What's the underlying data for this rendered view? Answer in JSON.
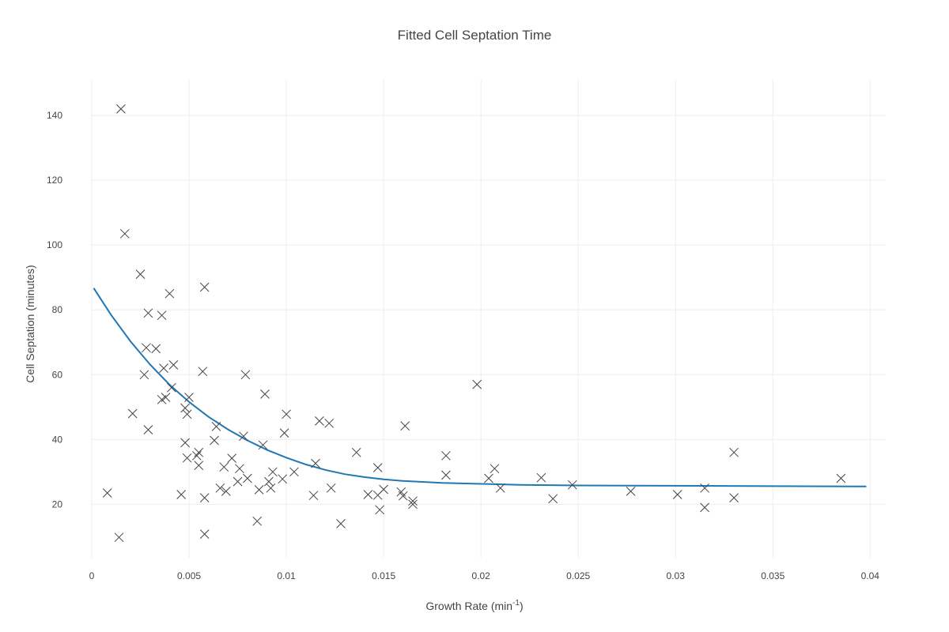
{
  "chart_data": {
    "type": "scatter",
    "title": "Fitted Cell Septation Time",
    "xlabel_main": "Growth Rate (min",
    "xlabel_sup": "-1",
    "xlabel_tail": ")",
    "ylabel": "Cell Septation (minutes)",
    "xlim": [
      0,
      0.0408
    ],
    "ylim": [
      3.5,
      151
    ],
    "xticks": [
      0,
      0.005,
      0.01,
      0.015,
      0.02,
      0.025,
      0.03,
      0.035,
      0.04
    ],
    "xtick_labels": [
      "0",
      "0.005",
      "0.01",
      "0.015",
      "0.02",
      "0.025",
      "0.03",
      "0.035",
      "0.04"
    ],
    "yticks": [
      20,
      40,
      60,
      80,
      100,
      120,
      140
    ],
    "ytick_labels": [
      "20",
      "40",
      "60",
      "80",
      "100",
      "120",
      "140"
    ],
    "grid": true,
    "colors": {
      "marker": "#444444",
      "fit": "#1f77b4",
      "grid": "#eeeeee",
      "text": "#444444"
    },
    "series": [
      {
        "kind": "markers",
        "marker": "x",
        "points": [
          [
            0.0015,
            142
          ],
          [
            0.0017,
            103.5
          ],
          [
            0.0025,
            91
          ],
          [
            0.0029,
            79
          ],
          [
            0.0036,
            78.3
          ],
          [
            0.004,
            85
          ],
          [
            0.0058,
            87
          ],
          [
            0.0028,
            68.3
          ],
          [
            0.0033,
            68
          ],
          [
            0.0027,
            60
          ],
          [
            0.0037,
            62
          ],
          [
            0.0042,
            63
          ],
          [
            0.0041,
            56
          ],
          [
            0.0036,
            52.3
          ],
          [
            0.0038,
            53
          ],
          [
            0.005,
            53
          ],
          [
            0.0048,
            49.7
          ],
          [
            0.0049,
            47.8
          ],
          [
            0.0021,
            48
          ],
          [
            0.0029,
            43
          ],
          [
            0.0048,
            39
          ],
          [
            0.0049,
            34.3
          ],
          [
            0.0054,
            35
          ],
          [
            0.0055,
            36
          ],
          [
            0.0055,
            32
          ],
          [
            0.0046,
            23
          ],
          [
            0.0057,
            61
          ],
          [
            0.0064,
            44
          ],
          [
            0.0063,
            39.7
          ],
          [
            0.0068,
            31.5
          ],
          [
            0.0072,
            34.2
          ],
          [
            0.0066,
            25
          ],
          [
            0.0069,
            24
          ],
          [
            0.0058,
            22
          ],
          [
            0.0058,
            10.8
          ],
          [
            0.0014,
            9.8
          ],
          [
            0.0008,
            23.5
          ],
          [
            0.0079,
            60
          ],
          [
            0.0089,
            54
          ],
          [
            0.0078,
            41
          ],
          [
            0.0088,
            38.3
          ],
          [
            0.0076,
            31
          ],
          [
            0.008,
            28
          ],
          [
            0.0075,
            27
          ],
          [
            0.0086,
            24.5
          ],
          [
            0.0085,
            14.8
          ],
          [
            0.0093,
            30
          ],
          [
            0.0091,
            27
          ],
          [
            0.0092,
            25
          ],
          [
            0.01,
            47.8
          ],
          [
            0.0099,
            42
          ],
          [
            0.0098,
            27.8
          ],
          [
            0.0104,
            30
          ],
          [
            0.0117,
            45.7
          ],
          [
            0.0122,
            45
          ],
          [
            0.0115,
            32.6
          ],
          [
            0.0114,
            22.7
          ],
          [
            0.0123,
            25
          ],
          [
            0.0128,
            14
          ],
          [
            0.0136,
            36
          ],
          [
            0.0147,
            31.3
          ],
          [
            0.0142,
            23
          ],
          [
            0.0147,
            22.8
          ],
          [
            0.015,
            24.6
          ],
          [
            0.0148,
            18.3
          ],
          [
            0.0161,
            44.2
          ],
          [
            0.0159,
            23.8
          ],
          [
            0.016,
            22.6
          ],
          [
            0.0165,
            21
          ],
          [
            0.0165,
            20
          ],
          [
            0.0182,
            35
          ],
          [
            0.0182,
            29
          ],
          [
            0.0198,
            57
          ],
          [
            0.0207,
            31
          ],
          [
            0.0204,
            28
          ],
          [
            0.021,
            25
          ],
          [
            0.0231,
            28.2
          ],
          [
            0.0237,
            21.7
          ],
          [
            0.0247,
            26
          ],
          [
            0.0277,
            24
          ],
          [
            0.0301,
            23
          ],
          [
            0.0315,
            25
          ],
          [
            0.0315,
            19
          ],
          [
            0.033,
            36
          ],
          [
            0.033,
            22
          ],
          [
            0.0385,
            28
          ]
        ]
      },
      {
        "kind": "line",
        "name": "fit",
        "points": [
          [
            0.0001,
            86.7
          ],
          [
            0.001,
            78.4
          ],
          [
            0.002,
            70.2
          ],
          [
            0.003,
            63.1
          ],
          [
            0.004,
            56.9
          ],
          [
            0.005,
            51.6
          ],
          [
            0.006,
            47.0
          ],
          [
            0.007,
            43.1
          ],
          [
            0.008,
            39.7
          ],
          [
            0.009,
            36.8
          ],
          [
            0.01,
            34.4
          ],
          [
            0.011,
            32.3
          ],
          [
            0.012,
            30.6
          ],
          [
            0.013,
            29.3
          ],
          [
            0.014,
            28.4
          ],
          [
            0.015,
            27.7
          ],
          [
            0.016,
            27.2
          ],
          [
            0.017,
            26.9
          ],
          [
            0.018,
            26.6
          ],
          [
            0.02,
            26.3
          ],
          [
            0.022,
            26.0
          ],
          [
            0.025,
            25.8
          ],
          [
            0.03,
            25.7
          ],
          [
            0.035,
            25.6
          ],
          [
            0.0398,
            25.5
          ]
        ]
      }
    ]
  }
}
